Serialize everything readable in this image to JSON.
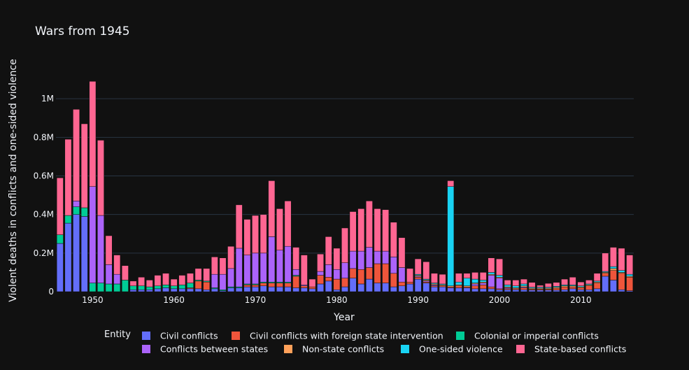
{
  "colors": {
    "background": "#111111",
    "grid": "#283442",
    "text": "#f2f5fa"
  },
  "chart_data": {
    "type": "bar",
    "stacked": true,
    "title": "Wars from 1945",
    "xlabel": "Year",
    "ylabel": "Violent deaths in conflicts and one-sided violence",
    "xlim": [
      1945.5,
      2016.5
    ],
    "ylim": [
      0,
      1200000
    ],
    "xticks": [
      1950,
      1960,
      1970,
      1980,
      1990,
      2000,
      2010
    ],
    "xtick_labels": [
      "1950",
      "1960",
      "1970",
      "1980",
      "1990",
      "2000",
      "2010"
    ],
    "yticks": [
      0,
      200000,
      400000,
      600000,
      800000,
      1000000
    ],
    "ytick_labels": [
      "0",
      "0.2M",
      "0.4M",
      "0.6M",
      "0.8M",
      "1M"
    ],
    "grid": true,
    "legend": {
      "title": "Entity",
      "placement": "bottom"
    },
    "x": [
      1946,
      1947,
      1948,
      1949,
      1950,
      1951,
      1952,
      1953,
      1954,
      1955,
      1956,
      1957,
      1958,
      1959,
      1960,
      1961,
      1962,
      1963,
      1964,
      1965,
      1966,
      1967,
      1968,
      1969,
      1970,
      1971,
      1972,
      1973,
      1974,
      1975,
      1976,
      1977,
      1978,
      1979,
      1980,
      1981,
      1982,
      1983,
      1984,
      1985,
      1986,
      1987,
      1988,
      1989,
      1990,
      1991,
      1992,
      1993,
      1994,
      1995,
      1996,
      1997,
      1998,
      1999,
      2000,
      2001,
      2002,
      2003,
      2004,
      2005,
      2006,
      2007,
      2008,
      2009,
      2010,
      2011,
      2012,
      2013,
      2014,
      2015,
      2016
    ],
    "series": [
      {
        "name": "Civil conflicts",
        "color": "#636efa",
        "values": [
          250000,
          355000,
          400000,
          390000,
          0,
          0,
          0,
          0,
          0,
          10000,
          10000,
          10000,
          15000,
          20000,
          15000,
          15000,
          15000,
          15000,
          10000,
          15000,
          5000,
          20000,
          20000,
          25000,
          25000,
          30000,
          25000,
          25000,
          25000,
          20000,
          20000,
          15000,
          40000,
          55000,
          10000,
          25000,
          70000,
          40000,
          65000,
          45000,
          45000,
          25000,
          30000,
          40000,
          65000,
          45000,
          25000,
          25000,
          20000,
          20000,
          20000,
          15000,
          15000,
          15000,
          10000,
          10000,
          10000,
          10000,
          8000,
          8000,
          8000,
          8000,
          10000,
          15000,
          10000,
          10000,
          15000,
          80000,
          60000,
          10000,
          5000
        ]
      },
      {
        "name": "Civil conflicts with foreign state intervention",
        "color": "#ef553b",
        "values": [
          0,
          0,
          0,
          0,
          0,
          0,
          0,
          0,
          0,
          0,
          0,
          0,
          0,
          0,
          0,
          0,
          5000,
          40000,
          40000,
          0,
          0,
          0,
          0,
          10000,
          10000,
          15000,
          20000,
          20000,
          20000,
          60000,
          10000,
          10000,
          45000,
          20000,
          55000,
          45000,
          50000,
          75000,
          60000,
          100000,
          100000,
          70000,
          20000,
          10000,
          10000,
          5000,
          5000,
          5000,
          5000,
          10000,
          5000,
          15000,
          20000,
          10000,
          5000,
          5000,
          5000,
          10000,
          5000,
          5000,
          5000,
          10000,
          15000,
          10000,
          10000,
          20000,
          30000,
          15000,
          50000,
          85000,
          70000
        ]
      },
      {
        "name": "Colonial or imperial conflicts",
        "color": "#00cc96",
        "values": [
          45000,
          40000,
          40000,
          45000,
          45000,
          45000,
          40000,
          40000,
          60000,
          20000,
          20000,
          15000,
          15000,
          15000,
          15000,
          20000,
          25000,
          5000,
          5000,
          5000,
          5000,
          5000,
          5000,
          5000,
          5000,
          5000,
          5000,
          5000,
          5000,
          5000,
          0,
          0,
          0,
          0,
          0,
          0,
          0,
          0,
          0,
          0,
          0,
          0,
          0,
          0,
          0,
          0,
          0,
          0,
          0,
          0,
          0,
          0,
          0,
          0,
          0,
          0,
          0,
          0,
          0,
          0,
          0,
          0,
          0,
          0,
          0,
          0,
          0,
          0,
          0,
          0,
          0
        ]
      },
      {
        "name": "Conflicts between states",
        "color": "#ab63fa",
        "values": [
          0,
          0,
          30000,
          0,
          500000,
          350000,
          100000,
          50000,
          0,
          0,
          0,
          0,
          0,
          0,
          0,
          0,
          0,
          0,
          0,
          70000,
          80000,
          95000,
          200000,
          150000,
          160000,
          150000,
          235000,
          165000,
          185000,
          30000,
          5000,
          0,
          20000,
          65000,
          50000,
          80000,
          90000,
          95000,
          105000,
          65000,
          65000,
          85000,
          75000,
          0,
          5000,
          5000,
          5000,
          0,
          0,
          0,
          0,
          10000,
          10000,
          60000,
          55000,
          5000,
          0,
          5000,
          0,
          0,
          0,
          0,
          0,
          0,
          0,
          0,
          0,
          0,
          0,
          0,
          0
        ]
      },
      {
        "name": "Non-state conflicts",
        "color": "#ffa15a",
        "values": [
          0,
          0,
          0,
          0,
          0,
          0,
          0,
          0,
          0,
          0,
          0,
          0,
          0,
          0,
          0,
          0,
          0,
          0,
          0,
          0,
          0,
          0,
          0,
          0,
          0,
          0,
          0,
          0,
          0,
          0,
          0,
          0,
          0,
          0,
          0,
          0,
          0,
          0,
          0,
          0,
          0,
          0,
          0,
          0,
          5000,
          5000,
          5000,
          5000,
          5000,
          5000,
          5000,
          5000,
          5000,
          5000,
          5000,
          5000,
          5000,
          5000,
          5000,
          5000,
          5000,
          5000,
          5000,
          5000,
          5000,
          5000,
          5000,
          5000,
          10000,
          5000,
          5000
        ]
      },
      {
        "name": "One-sided violence",
        "color": "#19d3f3",
        "values": [
          0,
          0,
          0,
          0,
          0,
          0,
          0,
          0,
          0,
          0,
          0,
          0,
          0,
          0,
          0,
          0,
          0,
          0,
          0,
          0,
          0,
          0,
          0,
          0,
          0,
          0,
          0,
          0,
          0,
          0,
          0,
          0,
          0,
          0,
          0,
          0,
          0,
          0,
          0,
          0,
          0,
          0,
          0,
          0,
          5000,
          5000,
          5000,
          5000,
          515000,
          15000,
          40000,
          20000,
          10000,
          10000,
          10000,
          10000,
          10000,
          10000,
          5000,
          5000,
          5000,
          5000,
          5000,
          5000,
          5000,
          5000,
          5000,
          5000,
          10000,
          10000,
          10000
        ]
      },
      {
        "name": "State-based conflicts",
        "color": "#ff6692",
        "values": [
          295000,
          395000,
          475000,
          435000,
          545000,
          390000,
          150000,
          100000,
          75000,
          25000,
          45000,
          35000,
          55000,
          60000,
          35000,
          50000,
          50000,
          60000,
          65000,
          90000,
          85000,
          115000,
          225000,
          185000,
          195000,
          200000,
          290000,
          215000,
          235000,
          115000,
          155000,
          40000,
          90000,
          145000,
          110000,
          180000,
          205000,
          220000,
          240000,
          220000,
          215000,
          180000,
          155000,
          70000,
          80000,
          90000,
          50000,
          50000,
          30000,
          45000,
          25000,
          35000,
          40000,
          75000,
          85000,
          25000,
          30000,
          25000,
          25000,
          10000,
          20000,
          20000,
          30000,
          40000,
          20000,
          20000,
          40000,
          95000,
          100000,
          115000,
          100000
        ]
      }
    ]
  }
}
